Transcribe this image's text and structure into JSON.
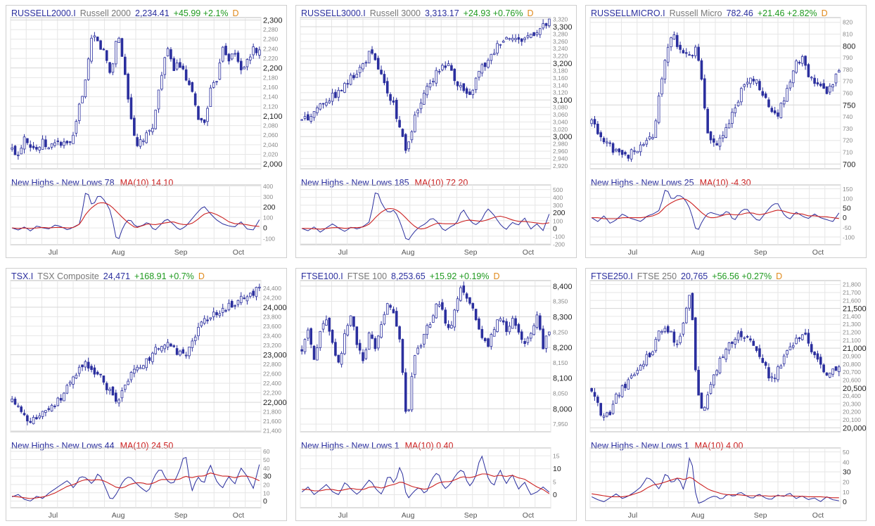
{
  "panels": [
    {
      "symbol": "RUSSELL2000.I",
      "name": "Russell 2000",
      "price": "2,234.41",
      "change": "+45.99 +2.1%",
      "period": "D",
      "sub_label": "New Highs - New Lows 78",
      "ma_label": "MA(10) 14.10"
    },
    {
      "symbol": "RUSSELL3000.I",
      "name": "Russell 3000",
      "price": "3,313.17",
      "change": "+24.93 +0.76%",
      "period": "D",
      "sub_label": "New Highs - New Lows 185",
      "ma_label": "MA(10) 72.20"
    },
    {
      "symbol": "RUSSELLMICRO.I",
      "name": "Russell Micro",
      "price": "782.46",
      "change": "+21.46 +2.82%",
      "period": "D",
      "sub_label": "New Highs - New Lows 25",
      "ma_label": "MA(10) -4.30"
    },
    {
      "symbol": "TSX.I",
      "name": "TSX Composite",
      "price": "24,471",
      "change": "+168.91 +0.7%",
      "period": "D",
      "sub_label": "New Highs - New Lows 44",
      "ma_label": "MA(10) 24.50"
    },
    {
      "symbol": "FTSE100.I",
      "name": "FTSE 100",
      "price": "8,253.65",
      "change": "+15.92 +0.19%",
      "period": "D",
      "sub_label": "New Highs - New Lows 1",
      "ma_label": "MA(10) 0.40"
    },
    {
      "symbol": "FTSE250.I",
      "name": "FTSE 250",
      "price": "20,765",
      "change": "+56.56 +0.27%",
      "period": "D",
      "sub_label": "New Highs - New Lows 1",
      "ma_label": "MA(10) 4.00"
    }
  ],
  "chart_data": [
    {
      "type": "candlestick",
      "title": "RUSSELL2000.I",
      "x_labels": [
        "Jul",
        "Aug",
        "Sep",
        "Oct"
      ],
      "ylim": [
        1990,
        2305
      ],
      "y_ticks_major": [
        2000,
        2100,
        2200,
        2300
      ],
      "y_ticks_minor": [
        2020,
        2040,
        2060,
        2080,
        2120,
        2140,
        2160,
        2180,
        2220,
        2240,
        2260,
        2280
      ],
      "close_path": [
        2030,
        2020,
        2060,
        2040,
        2030,
        2045,
        2030,
        2050,
        2040,
        2040,
        2055,
        2130,
        2180,
        2270,
        2250,
        2230,
        2180,
        2280,
        2210,
        2120,
        2030,
        2050,
        2060,
        2090,
        2180,
        2240,
        2200,
        2210,
        2180,
        2150,
        2100,
        2080,
        2150,
        2170,
        2250,
        2220,
        2230,
        2200,
        2210,
        2240,
        2234
      ],
      "sub_ylim": [
        -160,
        410
      ],
      "sub_ticks": [
        -100,
        0,
        100,
        200,
        300,
        400
      ],
      "nhnl": [
        0,
        -20,
        10,
        -30,
        20,
        0,
        -10,
        30,
        10,
        -20,
        10,
        40,
        380,
        200,
        320,
        260,
        150,
        -150,
        20,
        90,
        10,
        20,
        60,
        -30,
        30,
        90,
        40,
        -20,
        10,
        80,
        150,
        210,
        140,
        80,
        40,
        20,
        10,
        60,
        -10,
        -20,
        78
      ],
      "ma": [
        0,
        -5,
        0,
        -5,
        0,
        5,
        0,
        5,
        5,
        0,
        5,
        40,
        140,
        200,
        240,
        240,
        210,
        150,
        90,
        40,
        0,
        20,
        40,
        30,
        40,
        50,
        60,
        40,
        30,
        40,
        80,
        130,
        150,
        130,
        100,
        60,
        40,
        40,
        30,
        20,
        14.1
      ]
    },
    {
      "type": "candlestick",
      "title": "RUSSELL3000.I",
      "x_labels": [
        "Jul",
        "Aug",
        "Sep",
        "Oct"
      ],
      "ylim": [
        2912,
        3325
      ],
      "y_ticks_major": [
        3000,
        3100,
        3200,
        3300
      ],
      "y_ticks_minor": [
        2920,
        2940,
        2960,
        2980,
        3020,
        3040,
        3060,
        3080,
        3120,
        3140,
        3160,
        3180,
        3220,
        3240,
        3260,
        3280,
        3320
      ],
      "close_path": [
        3040,
        3050,
        3070,
        3090,
        3100,
        3110,
        3120,
        3140,
        3160,
        3180,
        3200,
        3230,
        3200,
        3160,
        3100,
        3080,
        3010,
        2950,
        3040,
        3080,
        3120,
        3150,
        3180,
        3200,
        3190,
        3150,
        3130,
        3100,
        3150,
        3190,
        3200,
        3230,
        3260,
        3270,
        3280,
        3260,
        3270,
        3280,
        3290,
        3300,
        3313
      ],
      "sub_ylim": [
        -210,
        560
      ],
      "sub_ticks": [
        -200,
        -100,
        0,
        100,
        200,
        300,
        400,
        500
      ],
      "nhnl": [
        0,
        -30,
        20,
        -50,
        10,
        60,
        0,
        -40,
        20,
        -10,
        30,
        90,
        520,
        300,
        200,
        240,
        60,
        -180,
        -60,
        20,
        60,
        140,
        80,
        -40,
        20,
        60,
        260,
        120,
        40,
        100,
        260,
        180,
        60,
        -20,
        80,
        40,
        140,
        -10,
        60,
        -30,
        185
      ],
      "ma": [
        0,
        0,
        -5,
        -10,
        0,
        10,
        10,
        0,
        10,
        10,
        20,
        60,
        150,
        220,
        260,
        250,
        200,
        120,
        40,
        -10,
        0,
        40,
        70,
        60,
        60,
        60,
        90,
        110,
        100,
        90,
        110,
        140,
        160,
        140,
        110,
        90,
        90,
        80,
        70,
        60,
        72.2
      ]
    },
    {
      "type": "candlestick",
      "title": "RUSSELLMICRO.I",
      "x_labels": [
        "Jul",
        "Aug",
        "Sep",
        "Oct"
      ],
      "ylim": [
        696,
        824
      ],
      "y_ticks_major": [
        700,
        750,
        800
      ],
      "y_ticks_minor": [
        710,
        720,
        730,
        740,
        760,
        770,
        780,
        790,
        810,
        820
      ],
      "close_path": [
        735,
        728,
        718,
        715,
        710,
        705,
        708,
        712,
        716,
        720,
        725,
        760,
        790,
        810,
        800,
        795,
        790,
        800,
        760,
        720,
        715,
        725,
        730,
        745,
        760,
        770,
        775,
        765,
        755,
        745,
        740,
        755,
        770,
        785,
        790,
        775,
        770,
        765,
        760,
        770,
        782
      ],
      "sub_ylim": [
        -140,
        170
      ],
      "sub_ticks": [
        -100,
        -50,
        0,
        50,
        100,
        150
      ],
      "nhnl": [
        0,
        -20,
        10,
        -30,
        -10,
        20,
        0,
        -10,
        -20,
        10,
        20,
        40,
        160,
        90,
        120,
        100,
        40,
        -80,
        -10,
        30,
        20,
        10,
        40,
        -20,
        30,
        50,
        10,
        -20,
        20,
        60,
        80,
        20,
        -10,
        30,
        10,
        -5,
        20,
        0,
        -10,
        -20,
        25
      ],
      "ma": [
        0,
        0,
        -5,
        -5,
        -5,
        0,
        0,
        0,
        0,
        5,
        10,
        25,
        60,
        80,
        95,
        100,
        80,
        50,
        20,
        0,
        0,
        10,
        20,
        15,
        15,
        25,
        25,
        15,
        20,
        30,
        40,
        35,
        25,
        20,
        20,
        10,
        10,
        5,
        5,
        0,
        -4.3
      ]
    },
    {
      "type": "candlestick",
      "title": "TSX.I",
      "x_labels": [
        "Jul",
        "Aug",
        "Sep",
        "Oct"
      ],
      "ylim": [
        21380,
        24560
      ],
      "y_ticks_major": [
        22000,
        23000,
        24000
      ],
      "y_ticks_minor": [
        21400,
        21600,
        21800,
        22200,
        22400,
        22600,
        22800,
        23200,
        23400,
        23600,
        23800,
        24200,
        24400
      ],
      "close_path": [
        22000,
        21850,
        21700,
        21600,
        21650,
        21750,
        21900,
        22000,
        22100,
        22300,
        22500,
        22700,
        22800,
        22700,
        22600,
        22400,
        22200,
        21900,
        22300,
        22500,
        22700,
        22800,
        22900,
        23100,
        23200,
        23300,
        23200,
        23000,
        23000,
        23300,
        23500,
        23700,
        23800,
        23900,
        23950,
        24000,
        24100,
        24150,
        24200,
        24300,
        24471
      ],
      "sub_ylim": [
        -8,
        64
      ],
      "sub_ticks": [
        0,
        10,
        20,
        30,
        40,
        50,
        60
      ],
      "nhnl": [
        5,
        8,
        2,
        0,
        6,
        3,
        10,
        15,
        20,
        25,
        15,
        30,
        28,
        20,
        35,
        18,
        0,
        10,
        25,
        30,
        22,
        15,
        10,
        30,
        40,
        25,
        20,
        35,
        60,
        10,
        30,
        20,
        45,
        25,
        15,
        30,
        20,
        40,
        30,
        15,
        44
      ],
      "ma": [
        6,
        5,
        4,
        3,
        4,
        5,
        7,
        10,
        14,
        18,
        20,
        24,
        26,
        25,
        26,
        24,
        20,
        16,
        16,
        20,
        22,
        22,
        20,
        22,
        26,
        26,
        26,
        26,
        30,
        28,
        30,
        30,
        34,
        32,
        30,
        30,
        28,
        30,
        30,
        28,
        24.5
      ]
    },
    {
      "type": "candlestick",
      "title": "FTSE100.I",
      "x_labels": [
        "Jul",
        "Aug",
        "Sep",
        "Oct"
      ],
      "ylim": [
        7925,
        8418
      ],
      "y_ticks_major": [
        8000,
        8100,
        8200,
        8300,
        8400
      ],
      "y_ticks_minor": [
        7950,
        8050,
        8150,
        8250,
        8350
      ],
      "close_path": [
        8200,
        8250,
        8150,
        8250,
        8300,
        8200,
        8150,
        8250,
        8300,
        8200,
        8150,
        8250,
        8200,
        8300,
        8350,
        8300,
        8200,
        7950,
        8150,
        8200,
        8250,
        8300,
        8350,
        8300,
        8250,
        8350,
        8400,
        8350,
        8300,
        8250,
        8200,
        8250,
        8300,
        8250,
        8300,
        8250,
        8200,
        8250,
        8300,
        8200,
        8254
      ],
      "sub_ylim": [
        -5,
        18
      ],
      "sub_ticks": [
        0,
        5,
        10,
        15
      ],
      "nhnl": [
        1,
        3,
        0,
        2,
        4,
        1,
        0,
        5,
        2,
        0,
        3,
        6,
        2,
        0,
        8,
        4,
        12,
        -2,
        1,
        3,
        0,
        6,
        9,
        2,
        4,
        8,
        10,
        3,
        6,
        16,
        7,
        3,
        10,
        4,
        8,
        2,
        5,
        0,
        1,
        3,
        1
      ],
      "ma": [
        2,
        2,
        1.5,
        1.5,
        2,
        2,
        1.5,
        2,
        2.5,
        2,
        2,
        3,
        3,
        2.5,
        3.5,
        4,
        5,
        4,
        3,
        2.5,
        2,
        3,
        4.5,
        5,
        5,
        6,
        7,
        6.5,
        7,
        8,
        8,
        7,
        7.5,
        7,
        7.5,
        6.5,
        6,
        4.5,
        3,
        2,
        0.4
      ]
    },
    {
      "type": "candlestick",
      "title": "FTSE250.I",
      "x_labels": [
        "Jul",
        "Aug",
        "Sep",
        "Oct"
      ],
      "ylim": [
        19950,
        21850
      ],
      "y_ticks_major": [
        20000,
        20500,
        21000,
        21500
      ],
      "y_ticks_minor": [
        20100,
        20200,
        20300,
        20400,
        20600,
        20700,
        20800,
        20900,
        21100,
        21200,
        21300,
        21400,
        21600,
        21700,
        21800
      ],
      "close_path": [
        20500,
        20300,
        20100,
        20200,
        20400,
        20500,
        20600,
        20700,
        20800,
        20900,
        21000,
        21200,
        21300,
        21150,
        21000,
        21350,
        21700,
        20500,
        20200,
        20500,
        20700,
        20900,
        21000,
        21100,
        21200,
        21150,
        21050,
        20950,
        20800,
        20600,
        20700,
        20900,
        21000,
        21100,
        21200,
        21100,
        20900,
        20800,
        20700,
        20750,
        20765
      ],
      "sub_ylim": [
        -6,
        54
      ],
      "sub_ticks": [
        0,
        10,
        20,
        30,
        40,
        50
      ],
      "nhnl": [
        5,
        2,
        0,
        4,
        8,
        3,
        6,
        10,
        15,
        25,
        20,
        12,
        30,
        18,
        25,
        10,
        52,
        -2,
        0,
        4,
        6,
        2,
        8,
        5,
        10,
        6,
        3,
        8,
        4,
        2,
        7,
        5,
        9,
        3,
        6,
        2,
        4,
        0,
        5,
        2,
        1
      ],
      "ma": [
        8,
        7,
        6,
        5,
        5,
        5,
        6,
        8,
        10,
        14,
        17,
        18,
        20,
        22,
        24,
        22,
        25,
        20,
        16,
        12,
        10,
        8,
        7,
        7,
        7,
        6,
        6,
        6,
        6,
        5.5,
        6,
        6,
        6,
        5.5,
        5.5,
        5,
        5,
        5,
        4.5,
        4,
        4
      ]
    }
  ]
}
